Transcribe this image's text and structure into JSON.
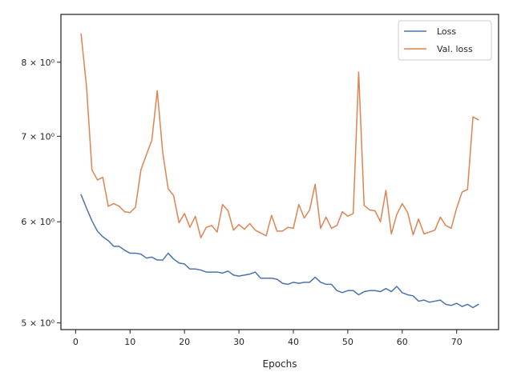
{
  "chart_data": {
    "type": "line",
    "title": "",
    "xlabel": "Epochs",
    "ylabel": "",
    "yscale": "log",
    "xlim": [
      -2.7,
      77.7
    ],
    "ylim": [
      4.94,
      8.72
    ],
    "x_ticks": [
      0,
      10,
      20,
      30,
      40,
      50,
      60,
      70
    ],
    "y_ticks": [
      {
        "value": 5,
        "label": "5 × 10⁰"
      },
      {
        "value": 6,
        "label": "6 × 10⁰"
      },
      {
        "value": 7,
        "label": "7 × 10⁰"
      },
      {
        "value": 8,
        "label": "8 × 10⁰"
      }
    ],
    "grid": false,
    "legend": {
      "position": "top-right"
    },
    "x": [
      1,
      2,
      3,
      4,
      5,
      6,
      7,
      8,
      9,
      10,
      11,
      12,
      13,
      14,
      15,
      16,
      17,
      18,
      19,
      20,
      21,
      22,
      23,
      24,
      25,
      26,
      27,
      28,
      29,
      30,
      31,
      32,
      33,
      34,
      35,
      36,
      37,
      38,
      39,
      40,
      41,
      42,
      43,
      44,
      45,
      46,
      47,
      48,
      49,
      50,
      51,
      52,
      53,
      54,
      55,
      56,
      57,
      58,
      59,
      60,
      61,
      62,
      63,
      64,
      65,
      66,
      67,
      68,
      69,
      70,
      71,
      72,
      73,
      74
    ],
    "series": [
      {
        "name": "Loss",
        "color": "#4c72b0",
        "values": [
          6.3,
          6.15,
          6.01,
          5.9,
          5.84,
          5.8,
          5.74,
          5.74,
          5.7,
          5.67,
          5.67,
          5.66,
          5.62,
          5.63,
          5.6,
          5.6,
          5.67,
          5.61,
          5.57,
          5.56,
          5.51,
          5.51,
          5.5,
          5.48,
          5.48,
          5.48,
          5.47,
          5.49,
          5.45,
          5.44,
          5.45,
          5.46,
          5.48,
          5.42,
          5.42,
          5.42,
          5.41,
          5.37,
          5.36,
          5.38,
          5.37,
          5.38,
          5.38,
          5.43,
          5.38,
          5.36,
          5.36,
          5.3,
          5.28,
          5.3,
          5.3,
          5.26,
          5.29,
          5.3,
          5.3,
          5.29,
          5.32,
          5.29,
          5.34,
          5.28,
          5.26,
          5.25,
          5.2,
          5.21,
          5.19,
          5.2,
          5.21,
          5.17,
          5.16,
          5.18,
          5.15,
          5.17,
          5.14,
          5.17
        ]
      },
      {
        "name": "Val. loss",
        "color": "#dd8452",
        "values": [
          8.42,
          7.66,
          6.59,
          6.47,
          6.5,
          6.17,
          6.2,
          6.17,
          6.11,
          6.1,
          6.16,
          6.59,
          6.77,
          6.95,
          7.6,
          6.8,
          6.37,
          6.29,
          5.99,
          6.09,
          5.94,
          6.06,
          5.83,
          5.94,
          5.96,
          5.89,
          6.19,
          6.12,
          5.91,
          5.97,
          5.92,
          5.98,
          5.91,
          5.88,
          5.85,
          6.07,
          5.9,
          5.9,
          5.94,
          5.93,
          6.19,
          6.04,
          6.13,
          6.42,
          5.93,
          6.05,
          5.93,
          5.96,
          6.11,
          6.06,
          6.09,
          7.86,
          6.18,
          6.13,
          6.12,
          6.0,
          6.35,
          5.87,
          6.08,
          6.2,
          6.1,
          5.86,
          6.03,
          5.87,
          5.89,
          5.91,
          6.05,
          5.96,
          5.93,
          6.15,
          6.33,
          6.36,
          7.25,
          7.21
        ]
      }
    ]
  }
}
